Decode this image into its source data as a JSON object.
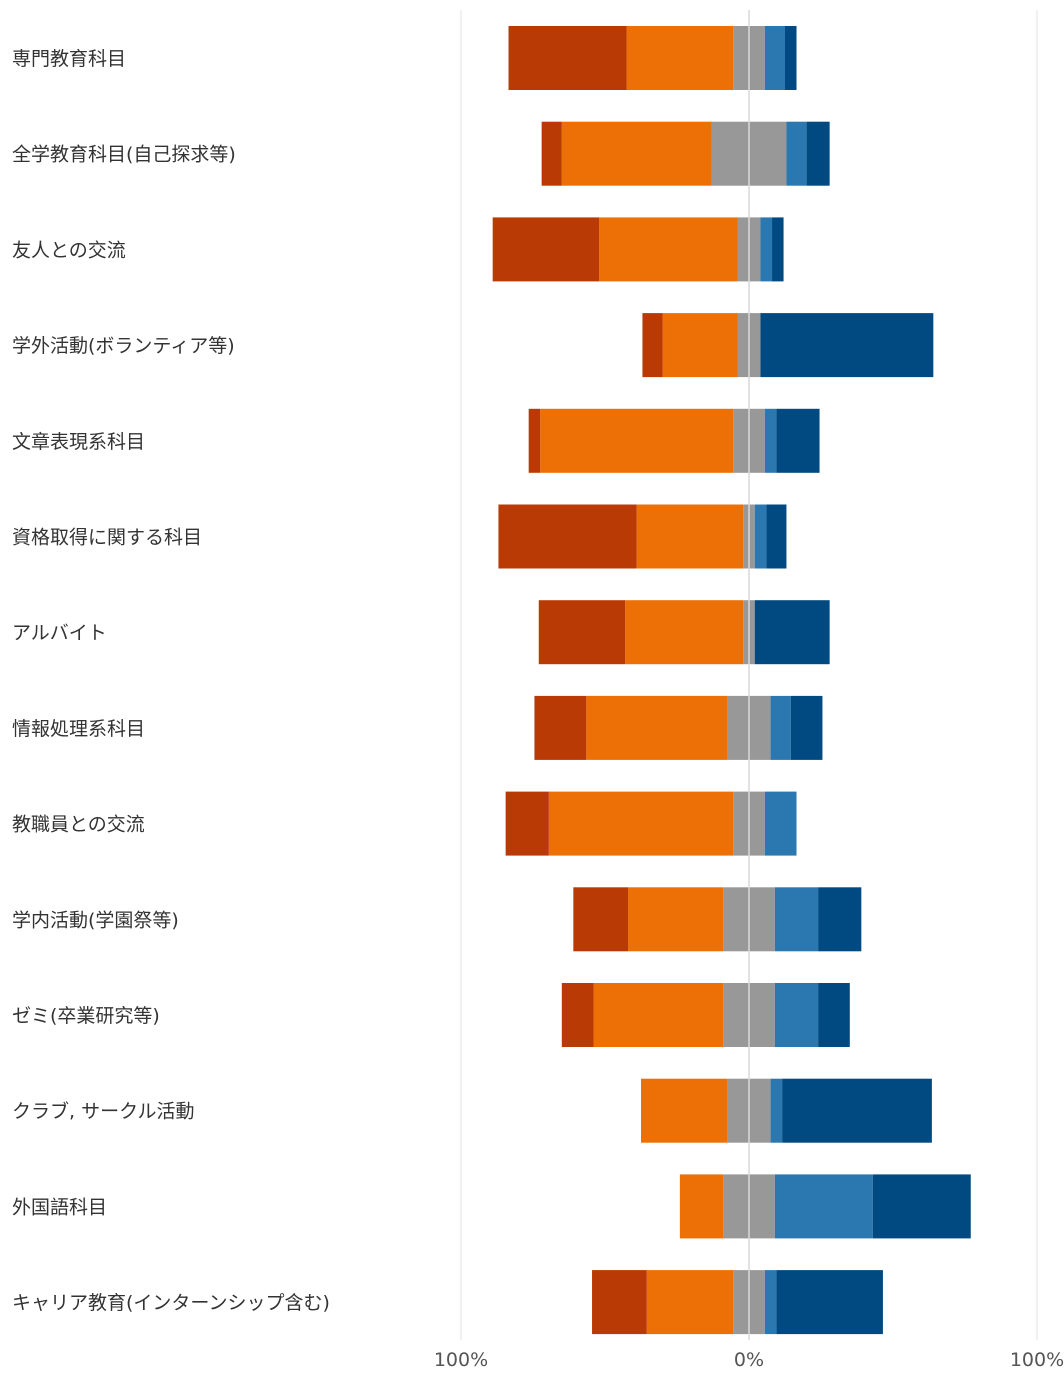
{
  "chart_data": {
    "type": "bar",
    "subtype": "diverging-stacked-horizontal",
    "title": "",
    "xlabel": "",
    "ylabel": "",
    "xlim": [
      -100,
      100
    ],
    "x_ticks": [
      "100%",
      "0%",
      "100%"
    ],
    "grid": false,
    "legend": "none",
    "categories": [
      "専門教育科目",
      "全学教育科目(自己探求等)",
      "友人との交流",
      "学外活動(ボランティア等)",
      "文章表現系科目",
      "資格取得に関する科目",
      "アルバイト",
      "情報処理系科目",
      "教職員との交流",
      "学内活動(学園祭等)",
      "ゼミ(卒業研究等)",
      "クラブ, サークル活動",
      "外国語科目",
      "キャリア教育(インターンシップ含む)"
    ],
    "series": [
      {
        "color": "#BA3A05",
        "values": [
          41,
          7,
          37,
          7,
          4,
          48,
          30,
          18,
          15,
          19,
          11,
          0,
          0,
          19
        ]
      },
      {
        "color": "#EC7005",
        "values": [
          37,
          52,
          48,
          26,
          67,
          37,
          41,
          49,
          64,
          33,
          45,
          30,
          15,
          30
        ]
      },
      {
        "color": "#989898",
        "values": [
          5.5,
          13,
          4,
          4,
          5.5,
          2,
          2,
          7.5,
          5.5,
          9,
          9,
          7.5,
          9,
          5.5
        ]
      },
      {
        "color": "#989898",
        "values": [
          5.5,
          13,
          4,
          4,
          5.5,
          2,
          2,
          7.5,
          5.5,
          9,
          9,
          7.5,
          9,
          5.5
        ]
      },
      {
        "color": "#2B78B0",
        "values": [
          7,
          7,
          4,
          0,
          4,
          4,
          0,
          7,
          11,
          15,
          15,
          4,
          34,
          4
        ]
      },
      {
        "color": "#014A81",
        "values": [
          4,
          8,
          4,
          60,
          15,
          7,
          26,
          11,
          0,
          15,
          11,
          52,
          34,
          37
        ]
      }
    ]
  }
}
